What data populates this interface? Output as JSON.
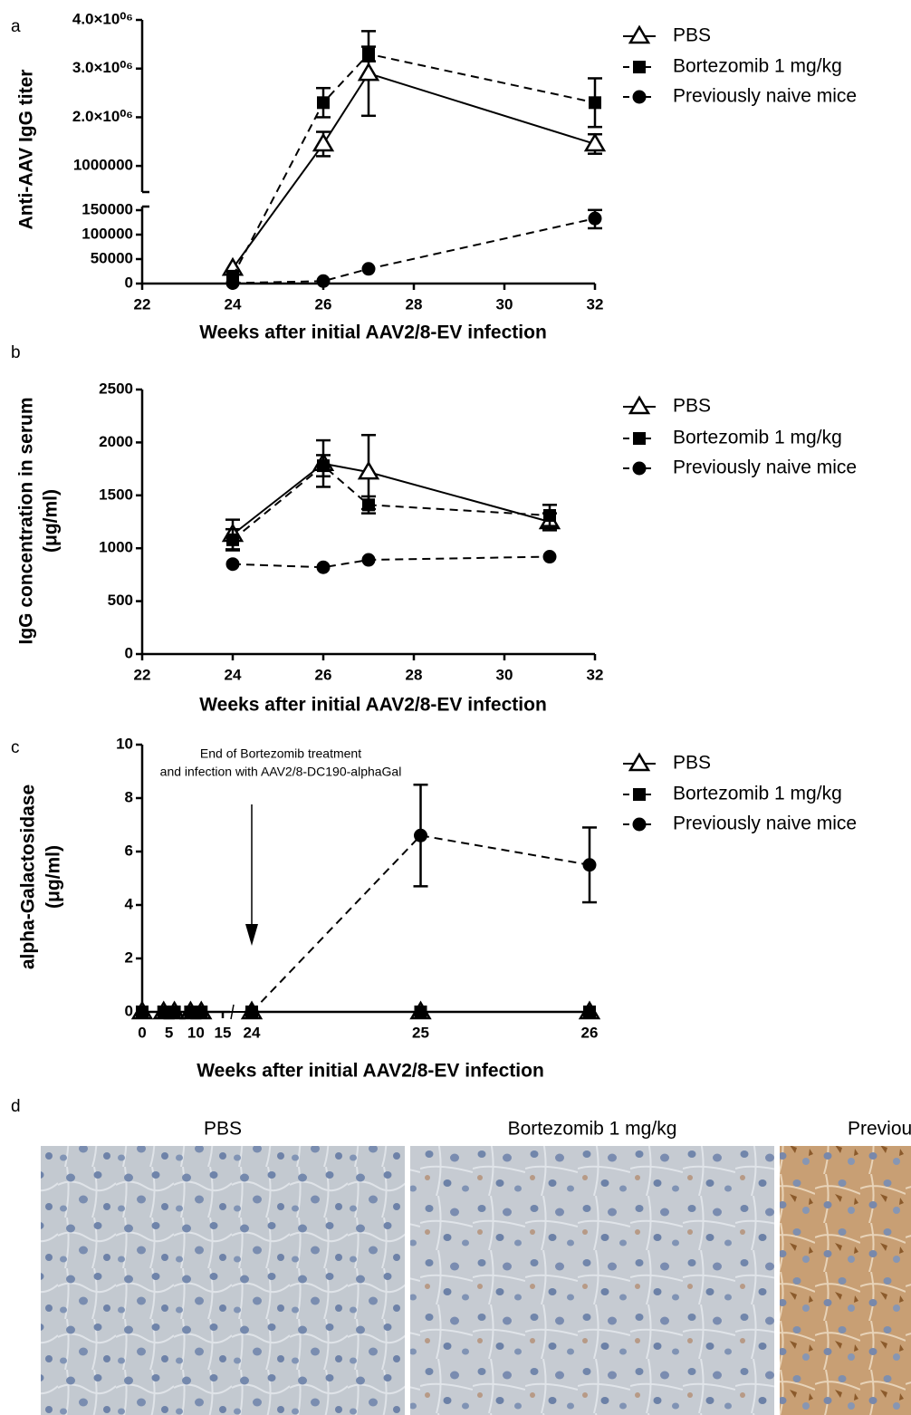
{
  "chart_data": [
    {
      "panel": "a",
      "type": "line",
      "ylabel": "Anti-AAV IgG titer",
      "xlabel": "Weeks after initial AAV2/8-EV infection",
      "x": [
        24,
        26,
        27,
        32
      ],
      "xlim": [
        22,
        32
      ],
      "xticks": [
        22,
        24,
        26,
        28,
        30,
        32
      ],
      "ylim": [
        0,
        4000000
      ],
      "ybreak": [
        150000,
        500000
      ],
      "yticks": [
        0,
        50000,
        100000,
        150000,
        1000000,
        {
          "value": 2000000,
          "label": "2.0×10⁰⁶"
        },
        {
          "value": 3000000,
          "label": "3.0×10⁰⁶"
        },
        {
          "value": 4000000,
          "label": "4.0×10⁰⁶"
        }
      ],
      "series": [
        {
          "name": "PBS",
          "color": "#000000",
          "marker": "triangle",
          "fill": "#ffffff",
          "line_style": "solid",
          "values": [
            31000,
            1450000,
            2900000,
            1450000
          ],
          "errors": [
            null,
            250000,
            870000,
            200000
          ]
        },
        {
          "name": "Bortezomib 1 mg/kg",
          "color": "#000000",
          "marker": "square",
          "fill": "#000000",
          "line_style": "dashed",
          "values": [
            15000,
            2300000,
            3300000,
            2300000
          ],
          "errors": [
            null,
            300000,
            150000,
            500000
          ]
        },
        {
          "name": "Previously naive mice",
          "color": "#000000",
          "marker": "circle",
          "fill": "#000000",
          "line_style": "dashed",
          "values": [
            1000,
            5000,
            30000,
            133000
          ],
          "errors": [
            null,
            null,
            null,
            20000
          ]
        }
      ]
    },
    {
      "panel": "b",
      "type": "line",
      "ylabel": [
        "IgG concentration in serum",
        "(μg/ml)"
      ],
      "xlabel": "Weeks after initial AAV2/8-EV infection",
      "x": [
        24,
        26,
        27,
        31
      ],
      "xlim": [
        22,
        32
      ],
      "xticks": [
        22,
        24,
        26,
        28,
        30,
        32
      ],
      "ylim": [
        0,
        2500
      ],
      "yticks": [
        0,
        500,
        1000,
        1500,
        2000,
        2500
      ],
      "series": [
        {
          "name": "PBS",
          "color": "#000000",
          "marker": "triangle",
          "fill": "#ffffff",
          "line_style": "solid",
          "values": [
            1130,
            1800,
            1720,
            1250
          ],
          "errors": [
            140,
            220,
            350,
            80
          ]
        },
        {
          "name": "Bortezomib 1 mg/kg",
          "color": "#000000",
          "marker": "square",
          "fill": "#000000",
          "line_style": "dashed",
          "values": [
            1080,
            1780,
            1410,
            1310
          ],
          "errors": [
            100,
            100,
            80,
            100
          ]
        },
        {
          "name": "Previously naive mice",
          "color": "#000000",
          "marker": "circle",
          "fill": "#000000",
          "line_style": "dashed",
          "values": [
            850,
            820,
            890,
            920
          ],
          "errors": [
            null,
            null,
            null,
            null
          ]
        }
      ]
    },
    {
      "panel": "c",
      "type": "line",
      "ylabel": [
        "alpha-Galactosidase",
        "(μg/ml)"
      ],
      "xlabel": "Weeks after initial AAV2/8-EV infection",
      "annotation": [
        "End of Bortezomib treatment",
        "and infection with AAV2/8-DC190-alphaGal"
      ],
      "arrow_x": 24,
      "x": [
        0,
        4,
        6,
        9,
        11,
        24,
        25,
        26
      ],
      "xlim": [
        0,
        26
      ],
      "xbreak": [
        15,
        24
      ],
      "xticks": [
        0,
        5,
        10,
        15,
        24,
        25,
        26
      ],
      "ylim": [
        0,
        10
      ],
      "yticks": [
        0,
        2,
        4,
        6,
        8,
        10
      ],
      "series": [
        {
          "name": "PBS",
          "color": "#000000",
          "marker": "triangle",
          "fill": "#ffffff",
          "line_style": "solid",
          "values": [
            0,
            0,
            0,
            0,
            0,
            0,
            0,
            0
          ],
          "errors": [
            null,
            null,
            null,
            null,
            null,
            null,
            null,
            null
          ]
        },
        {
          "name": "Bortezomib 1 mg/kg",
          "color": "#000000",
          "marker": "square",
          "fill": "#000000",
          "line_style": "dashed",
          "values": [
            0,
            0,
            0,
            0,
            0,
            0,
            0,
            0
          ],
          "errors": [
            null,
            null,
            null,
            null,
            null,
            null,
            null,
            null
          ]
        },
        {
          "name": "Previously naive mice",
          "color": "#000000",
          "marker": "circle",
          "fill": "#000000",
          "line_style": "dashed",
          "values": [
            null,
            null,
            null,
            null,
            null,
            0,
            6.6,
            5.5
          ],
          "errors": [
            null,
            null,
            null,
            null,
            null,
            null,
            1.9,
            1.4
          ]
        }
      ]
    }
  ],
  "micrographs": {
    "panel": "d",
    "titles": [
      "PBS",
      "Bortezomib 1 mg/kg",
      "Previously naive mice"
    ]
  }
}
